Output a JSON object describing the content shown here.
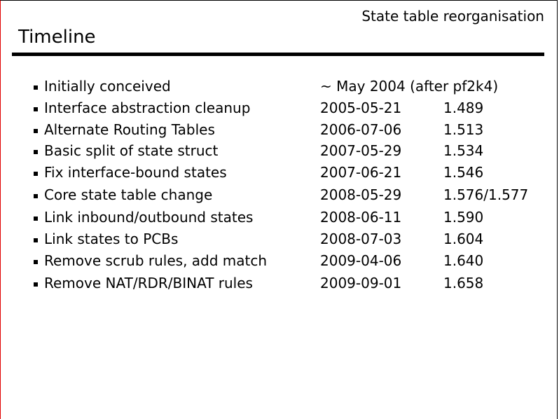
{
  "header": {
    "subtitle": "State table reorganisation",
    "title": "Timeline"
  },
  "items": [
    {
      "label": "Initially conceived",
      "date": "~ May 2004 (after pf2k4)",
      "rev": ""
    },
    {
      "label": "Interface abstraction cleanup",
      "date": "2005-05-21",
      "rev": "1.489"
    },
    {
      "label": "Alternate Routing Tables",
      "date": "2006-07-06",
      "rev": "1.513"
    },
    {
      "label": "Basic split of state struct",
      "date": "2007-05-29",
      "rev": "1.534"
    },
    {
      "label": "Fix interface-bound states",
      "date": "2007-06-21",
      "rev": "1.546"
    },
    {
      "label": "Core state table change",
      "date": "2008-05-29",
      "rev": "1.576/1.577"
    },
    {
      "label": "Link inbound/outbound states",
      "date": "2008-06-11",
      "rev": "1.590"
    },
    {
      "label": "Link states to PCBs",
      "date": "2008-07-03",
      "rev": "1.604"
    },
    {
      "label": "Remove scrub rules, add match",
      "date": "2009-04-06",
      "rev": "1.640"
    },
    {
      "label": "Remove NAT/RDR/BINAT rules",
      "date": "2009-09-01",
      "rev": "1.658"
    }
  ]
}
